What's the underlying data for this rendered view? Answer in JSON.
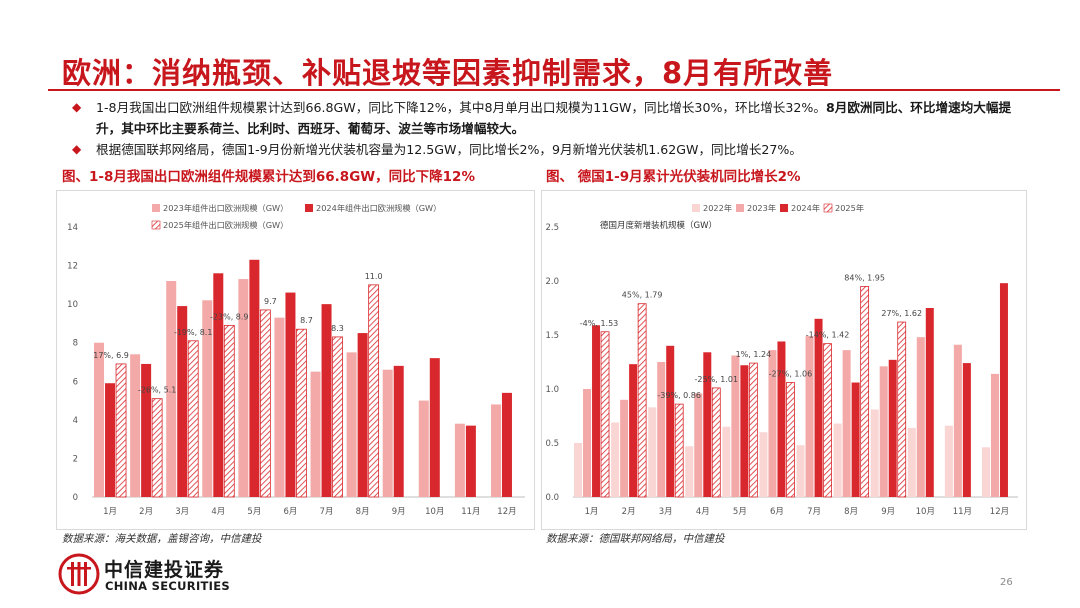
{
  "slide": {
    "title": "欧洲：消纳瓶颈、补贴退坡等因素抑制需求，8月有所改善",
    "bullet1_plain": "1-8月我国出口欧洲组件规模累计达到66.8GW，同比下降12%，其中8月单月出口规模为11GW，同比增长30%，环比增长32%。",
    "bullet1_bold": "8月欧洲同比、环比增速均大幅提升，其中环比主要系荷兰、比利时、西班牙、葡萄牙、波兰等市场增幅较大。",
    "bullet2": "根据德国联邦网络局，德国1-9月份新增光伏装机容量为12.5GW，同比增长2%，9月新增光伏装机1.62GW，同比增长27%。",
    "bullet_marker": "◆",
    "left_caption": "图、1-8月我国出口欧洲组件规模累计达到66.8GW，同比下降12%",
    "right_caption": "图、 德国1-9月累计光伏装机同比增长2%",
    "left_source": "数据来源：海关数据，盖锡咨询，中信建投",
    "right_source": "数据来源：德国联邦网络局，中信建投",
    "logo_cn": "中信建投证券",
    "logo_en": "CHINA SECURITIES",
    "page_number": "26"
  },
  "colors": {
    "brand_red": "#c8161d",
    "series_2022": "#f9d5d3",
    "series_2023": "#f2a9a7",
    "series_2024": "#d9282d",
    "series_2025_hatch": "#d9282d"
  },
  "chart_data": [
    {
      "type": "bar",
      "title": "",
      "categories": [
        "1月",
        "2月",
        "3月",
        "4月",
        "5月",
        "6月",
        "7月",
        "8月",
        "9月",
        "10月",
        "11月",
        "12月"
      ],
      "ylim": [
        0,
        14
      ],
      "yticks": [
        0,
        2,
        4,
        6,
        8,
        10,
        12,
        14
      ],
      "legend_position": "top",
      "series": [
        {
          "name": "2023年组件出口欧洲规模（GW）",
          "style": "light",
          "values": [
            8.0,
            7.4,
            11.2,
            10.2,
            11.3,
            9.3,
            6.5,
            7.5,
            6.6,
            5.0,
            3.8,
            4.8
          ]
        },
        {
          "name": "2024年组件出口欧洲规模（GW）",
          "style": "solid",
          "values": [
            5.9,
            6.9,
            9.9,
            11.6,
            12.3,
            10.6,
            10.0,
            8.5,
            6.8,
            7.2,
            3.7,
            5.4
          ]
        },
        {
          "name": "2025年组件出口欧洲规模（GW）",
          "style": "hatch",
          "values": [
            6.9,
            5.1,
            8.1,
            8.9,
            9.7,
            8.7,
            8.3,
            11.0,
            null,
            null,
            null,
            null
          ]
        }
      ],
      "data_labels": [
        "17%, 6.9",
        "-26%, 5.1",
        "-19%, 8.1",
        "-23%, 8.9",
        "9.7",
        "8.7",
        "8.3",
        "11.0"
      ]
    },
    {
      "type": "bar",
      "title": "",
      "ylabel": "德国月度新增装机规模（GW）",
      "categories": [
        "1月",
        "2月",
        "3月",
        "4月",
        "5月",
        "6月",
        "7月",
        "8月",
        "9月",
        "10月",
        "11月",
        "12月"
      ],
      "ylim": [
        0,
        2.5
      ],
      "yticks": [
        0.0,
        0.5,
        1.0,
        1.5,
        2.0,
        2.5
      ],
      "legend_position": "top",
      "series": [
        {
          "name": "2022年",
          "style": "lightest",
          "values": [
            0.5,
            0.69,
            0.83,
            0.47,
            0.65,
            0.6,
            0.48,
            0.68,
            0.81,
            0.64,
            0.66,
            0.46
          ]
        },
        {
          "name": "2023年",
          "style": "light",
          "values": [
            1.0,
            0.9,
            1.25,
            0.96,
            1.31,
            1.36,
            1.49,
            1.36,
            1.21,
            1.48,
            1.41,
            1.14
          ]
        },
        {
          "name": "2024年",
          "style": "solid",
          "values": [
            1.59,
            1.23,
            1.4,
            1.34,
            1.22,
            1.44,
            1.65,
            1.06,
            1.27,
            1.75,
            1.24,
            1.98
          ]
        },
        {
          "name": "2025年",
          "style": "hatch",
          "values": [
            1.53,
            1.79,
            0.86,
            1.01,
            1.24,
            1.06,
            1.42,
            1.95,
            1.62,
            null,
            null,
            null
          ]
        }
      ],
      "data_labels": [
        "-4%, 1.53",
        "45%, 1.79",
        "-39%, 0.86",
        "-25%, 1.01",
        "1%, 1.24",
        "-27%, 1.06",
        "-14%, 1.42",
        "84%, 1.95",
        "27%, 1.62"
      ]
    }
  ]
}
